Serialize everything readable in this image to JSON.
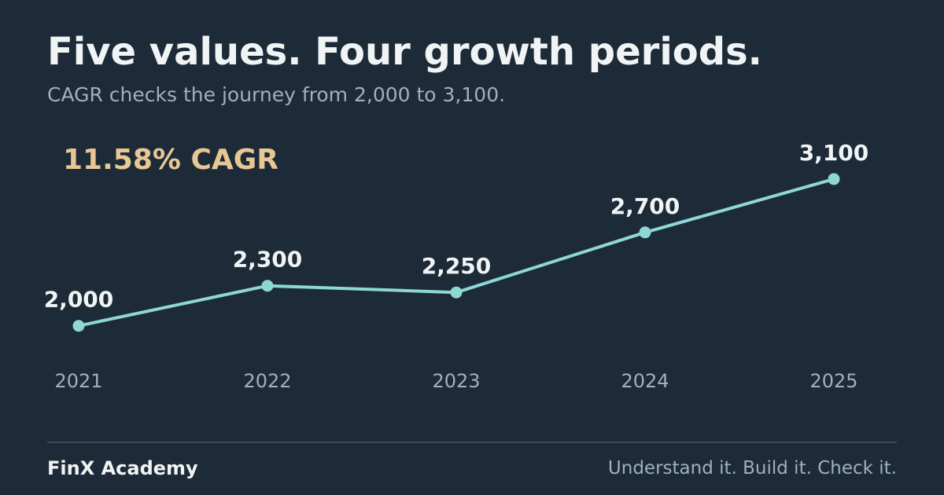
{
  "header": {
    "title": "Five values. Four growth periods.",
    "subtitle": "CAGR checks the journey from 2,000 to 3,100."
  },
  "chart_data": {
    "type": "line",
    "x": [
      "2021",
      "2022",
      "2023",
      "2024",
      "2025"
    ],
    "values": [
      2000,
      2300,
      2250,
      2700,
      3100
    ],
    "data_labels": [
      "2,000",
      "2,300",
      "2,250",
      "2,700",
      "3,100"
    ],
    "annotation": "11.58% CAGR",
    "ylim": [
      1350,
      3500
    ],
    "grid": false,
    "legend": "none"
  },
  "footer": {
    "brand": "FinX Academy",
    "tagline": "Understand it. Build it. Check it."
  },
  "colors": {
    "background": "#1d2b38",
    "line": "#8dd8d6",
    "annotation": "#e8c794",
    "title": "#f1f4f5",
    "muted": "#9fb0be",
    "divider": "#3b4b58"
  }
}
